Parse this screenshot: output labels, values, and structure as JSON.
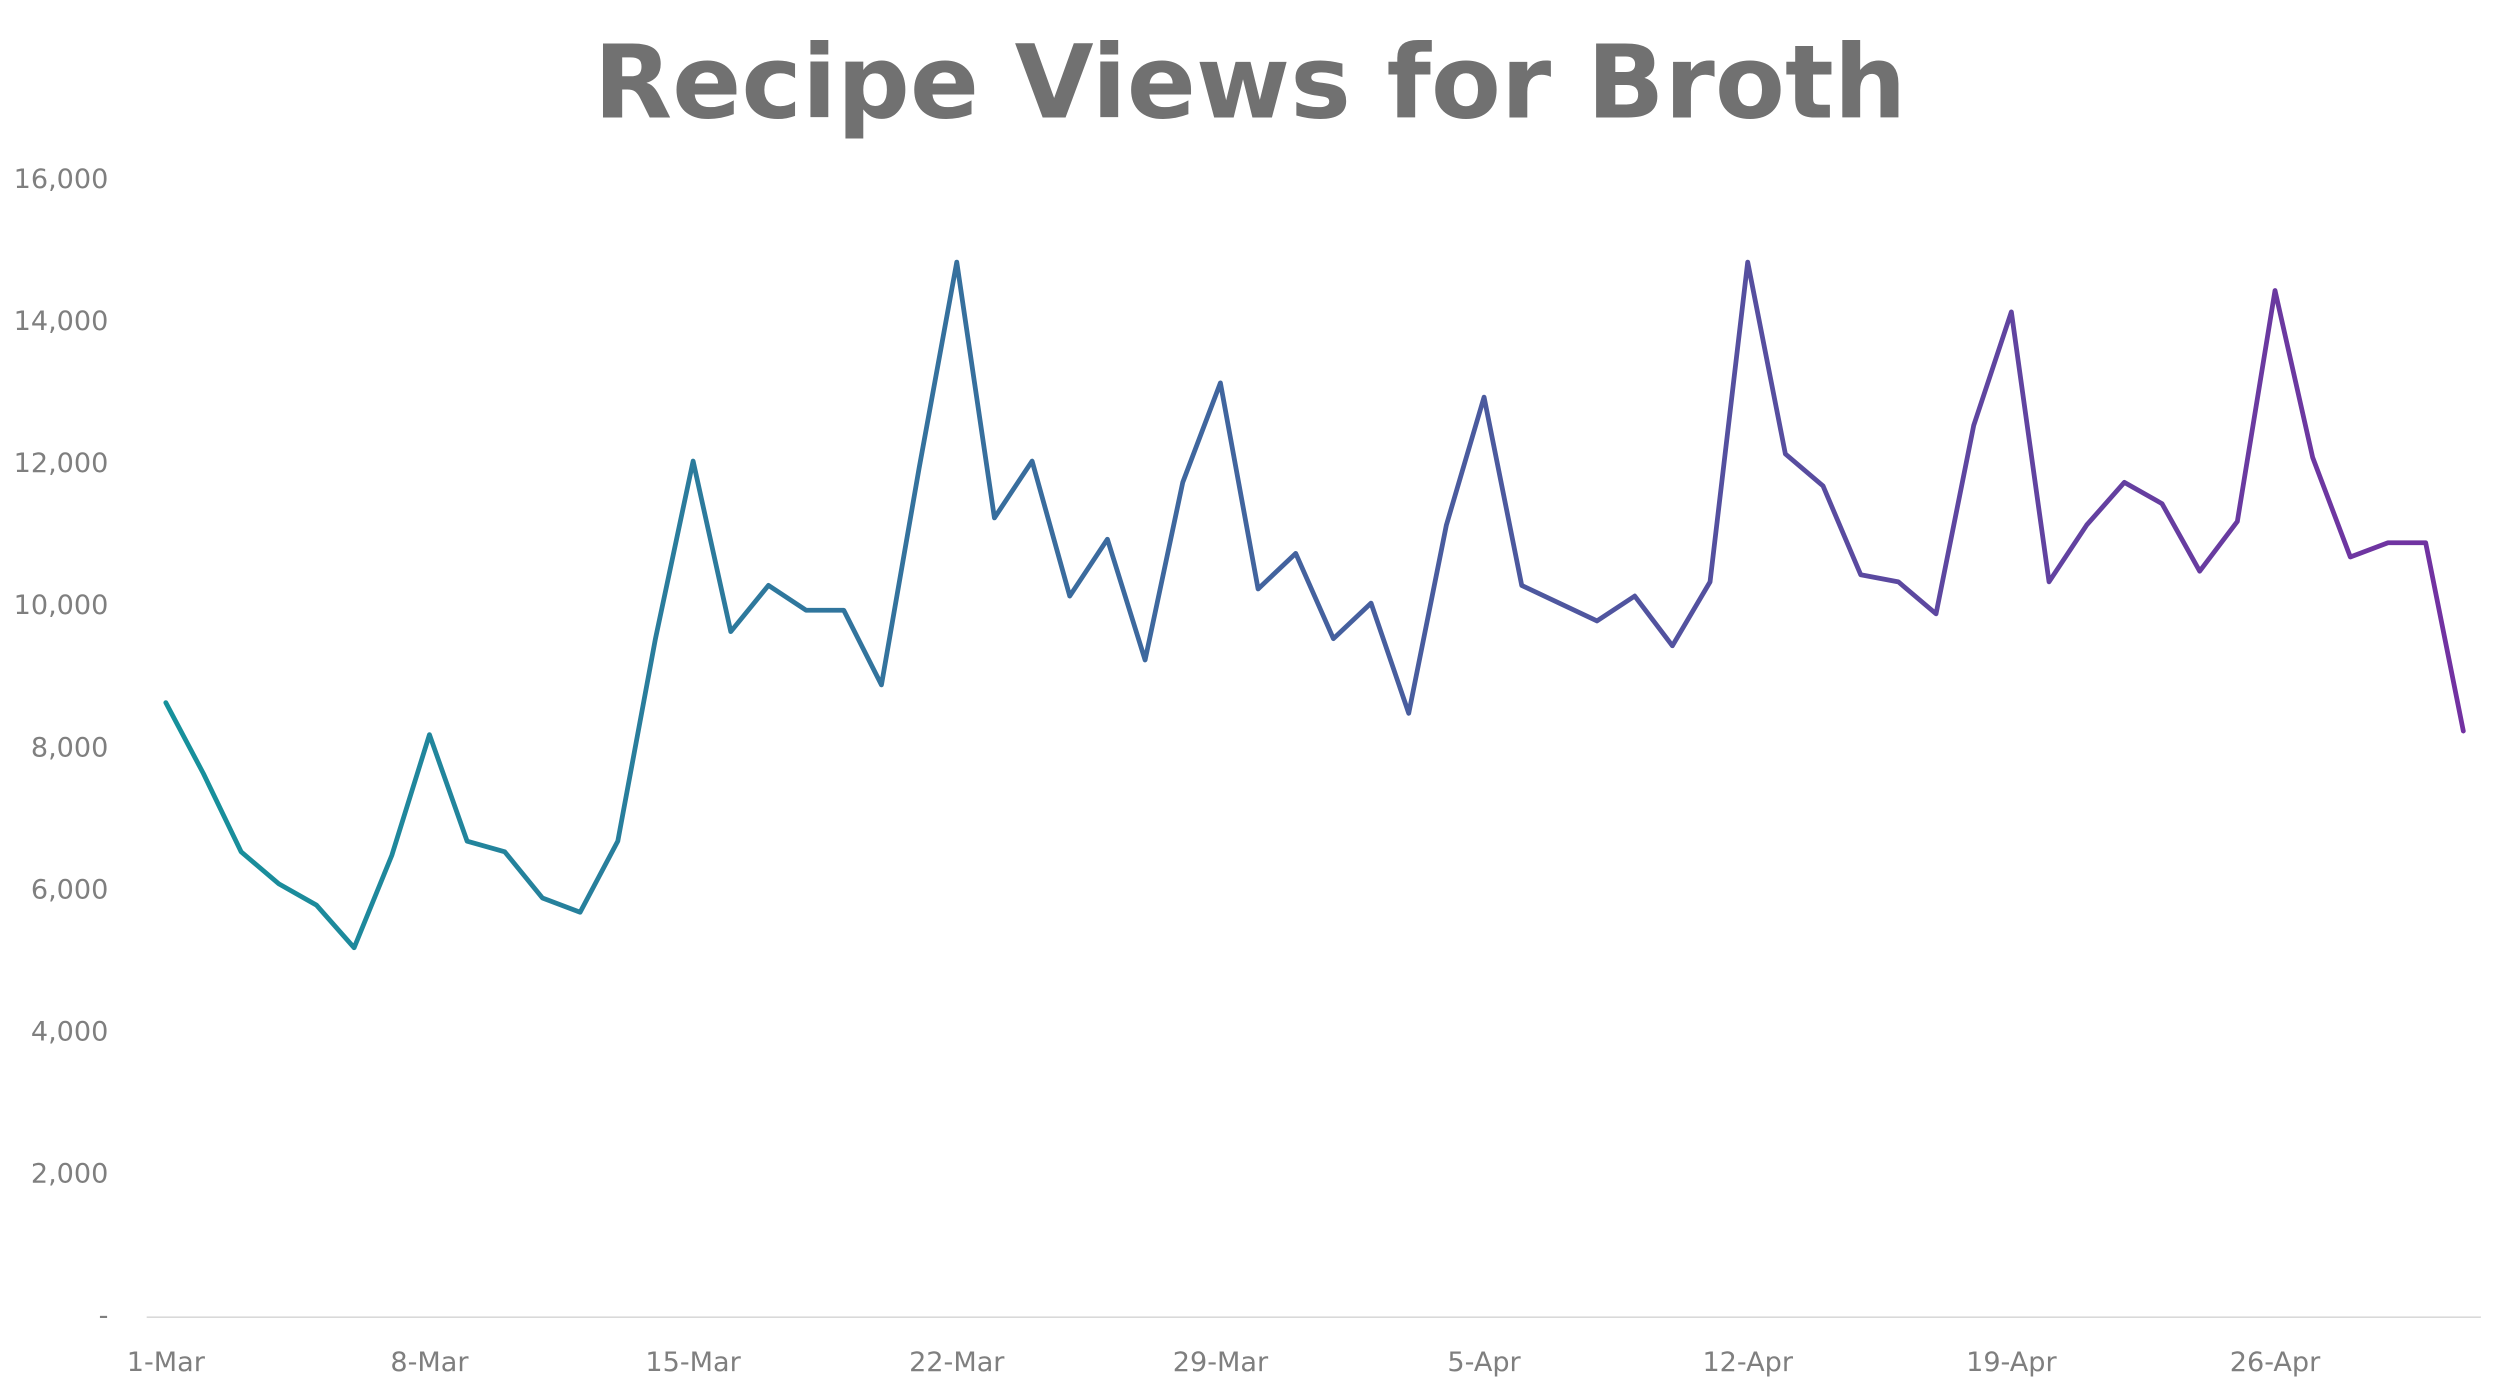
{
  "chart_data": {
    "type": "line",
    "title": "Recipe Views for Broth",
    "categories": [
      "1-Mar",
      null,
      null,
      null,
      null,
      null,
      null,
      "8-Mar",
      null,
      null,
      null,
      null,
      null,
      null,
      "15-Mar",
      null,
      null,
      null,
      null,
      null,
      null,
      "22-Mar",
      null,
      null,
      null,
      null,
      null,
      null,
      "29-Mar",
      null,
      null,
      null,
      null,
      null,
      null,
      "5-Apr",
      null,
      null,
      null,
      null,
      null,
      null,
      "12-Apr",
      null,
      null,
      null,
      null,
      null,
      null,
      "19-Apr",
      null,
      null,
      null,
      null,
      null,
      null,
      "26-Apr",
      null,
      null,
      null,
      null,
      null
    ],
    "values": [
      8650,
      7650,
      6550,
      6100,
      5800,
      5200,
      6500,
      8200,
      6700,
      6550,
      5900,
      5700,
      6700,
      9550,
      12050,
      9650,
      10300,
      9950,
      9950,
      8900,
      11950,
      14850,
      11250,
      12050,
      10150,
      10950,
      9250,
      11750,
      13150,
      10250,
      10750,
      9550,
      10050,
      8500,
      11150,
      12950,
      10300,
      10050,
      9800,
      10150,
      9450,
      10350,
      14850,
      12150,
      11700,
      10450,
      10350,
      9900,
      12550,
      14150,
      10350,
      11150,
      11750,
      11450,
      10500,
      11200,
      14450,
      12100,
      10700,
      10900,
      10900,
      8250
    ],
    "gradient": [
      "#16919b",
      "#7231a1"
    ],
    "ylim": [
      0,
      16000
    ],
    "yticks": [
      {
        "value": 0,
        "label": "-"
      },
      {
        "value": 2000,
        "label": "2,000"
      },
      {
        "value": 4000,
        "label": "4,000"
      },
      {
        "value": 6000,
        "label": "6,000"
      },
      {
        "value": 8000,
        "label": "8,000"
      },
      {
        "value": 10000,
        "label": "10,000"
      },
      {
        "value": 12000,
        "label": "12,000"
      },
      {
        "value": 14000,
        "label": "14,000"
      },
      {
        "value": 16000,
        "label": "16,000"
      }
    ],
    "grid": false
  }
}
